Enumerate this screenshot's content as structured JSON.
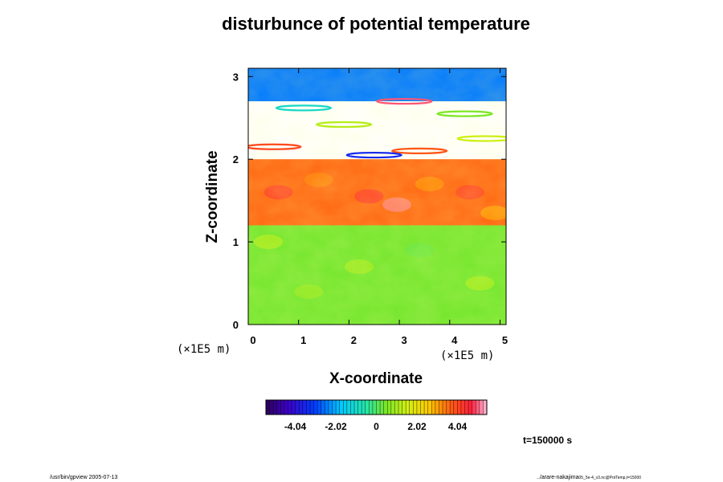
{
  "chart_data": {
    "type": "heatmap",
    "title": "disturbunce of potential temperature",
    "xlabel": "X-coordinate",
    "ylabel": "Z-coordinate",
    "x_unit": "(×1E5 m)",
    "y_unit": "(×1E5 m)",
    "xlim": [
      0,
      5.12
    ],
    "ylim": [
      0,
      3.1
    ],
    "x_ticks": [
      0,
      1,
      2,
      3,
      4,
      5
    ],
    "y_ticks": [
      0,
      1,
      2,
      3
    ],
    "x_tick_labels": [
      "0",
      "1",
      "2",
      "3",
      "4",
      "5"
    ],
    "y_tick_labels": [
      "0",
      "1",
      "2",
      "3"
    ],
    "field_layers": [
      {
        "z_range": [
          0,
          1.2
        ],
        "value": 0.4
      },
      {
        "z_range": [
          1.2,
          2.0
        ],
        "value": 3.6
      },
      {
        "z_range": [
          2.0,
          2.7
        ],
        "value": "masked"
      },
      {
        "z_range": [
          2.7,
          3.1
        ],
        "value": -2.5
      }
    ],
    "colorbar": {
      "min": -5.5,
      "max": 5.5,
      "tick_values": [
        -4.04,
        -2.02,
        0,
        2.02,
        4.04
      ],
      "tick_labels": [
        "-4.04",
        "-2.02",
        "0",
        "2.02",
        "4.04"
      ]
    },
    "time_label": "t=150000 s",
    "footer_left": "/usr/bin/gpview 2005-07-13",
    "footer_right": "../arare-nakajima",
    "footer_right_sub": "05_5e-4_v3.nc@PotTemp,t=15000",
    "colors": {
      "cold": "#1f3dff",
      "neutral": "#7fe33a",
      "warm": "#ff5a1a",
      "hot": "#ff2a55"
    }
  }
}
